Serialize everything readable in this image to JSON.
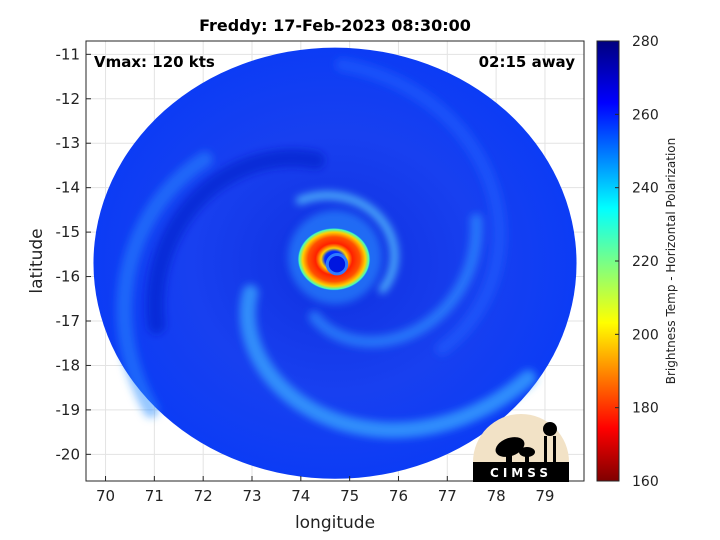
{
  "chart_data": {
    "type": "heatmap",
    "title": "Freddy: 17-Feb-2023 08:30:00",
    "xlabel": "longitude",
    "ylabel": "latitude",
    "xlim": [
      69.6,
      79.8
    ],
    "ylim": [
      -20.6,
      -10.7
    ],
    "xticks": [
      "70",
      "71",
      "72",
      "73",
      "74",
      "75",
      "76",
      "77",
      "78",
      "79"
    ],
    "yticks": [
      "-11",
      "-12",
      "-13",
      "-14",
      "-15",
      "-16",
      "-17",
      "-18",
      "-19",
      "-20"
    ],
    "grid": true,
    "annotations": {
      "intensity": "Vmax: 120 kts",
      "time_offset": "02:15 away"
    },
    "colorbar": {
      "label": "Brightness Temp - Horizontal Polarization",
      "range": [
        160,
        280
      ],
      "ticks": [
        "160",
        "180",
        "200",
        "220",
        "240",
        "260",
        "280"
      ],
      "colormap": [
        "#7f0000",
        "#ff0000",
        "#ffff00",
        "#00ffff",
        "#0000ff",
        "#00007f"
      ]
    },
    "field": {
      "swath_center": [
        74.7,
        -15.7
      ],
      "swath_radius_deg": 4.85,
      "background_value": 262,
      "eye_center": [
        74.7,
        -15.7
      ],
      "eye_value": 255,
      "eyewall_min_value": 165,
      "eyewall_radius_deg": 0.62,
      "spiral_band_value": 245
    },
    "logo": {
      "text": "CIMSS"
    }
  }
}
